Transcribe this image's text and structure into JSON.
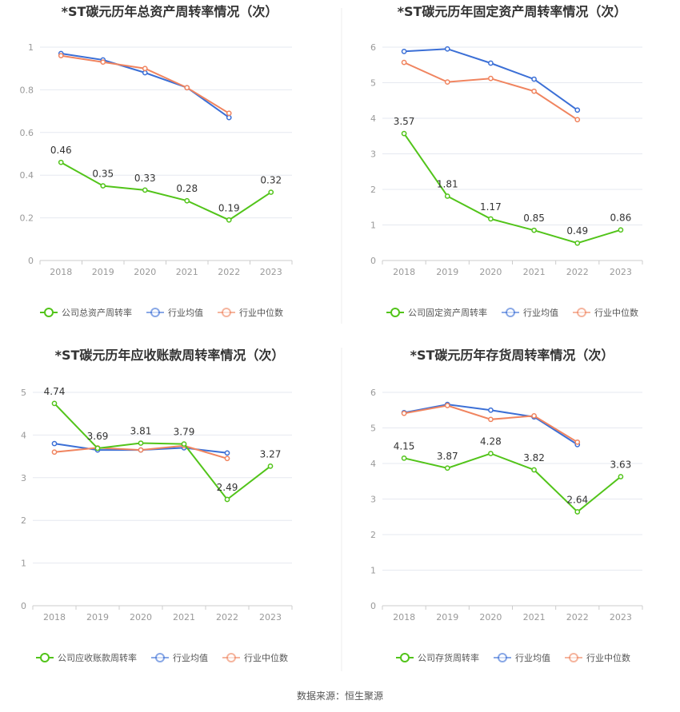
{
  "source_text": "数据来源：恒生聚源",
  "colors": {
    "company": "#52c41a",
    "avg": "#3b6fd6",
    "median": "#f0845f",
    "grid": "#e6e9f0",
    "axis": "#999999",
    "label": "#666666",
    "title": "#333333"
  },
  "chart_data": [
    {
      "type": "line",
      "title": "*ST碳元历年总资产周转率情况（次）",
      "categories": [
        "2018",
        "2019",
        "2020",
        "2021",
        "2022",
        "2023"
      ],
      "ylim": [
        0,
        1
      ],
      "yticks": [
        0,
        0.2,
        0.4,
        0.6,
        0.8,
        1
      ],
      "ytick_labels": [
        "0",
        "0.2",
        "0.4",
        "0.6",
        "0.8",
        "1"
      ],
      "grid": true,
      "legend_position": "bottom",
      "series": [
        {
          "name": "公司总资产周转率",
          "color": "#52c41a",
          "values": [
            0.46,
            0.35,
            0.33,
            0.28,
            0.19,
            0.32
          ],
          "labels": [
            "0.46",
            "0.35",
            "0.33",
            "0.28",
            "0.19",
            "0.32"
          ]
        },
        {
          "name": "行业均值",
          "color": "#3b6fd6",
          "values": [
            0.97,
            0.94,
            0.88,
            0.81,
            0.67,
            null
          ]
        },
        {
          "name": "行业中位数",
          "color": "#f0845f",
          "values": [
            0.96,
            0.93,
            0.9,
            0.81,
            0.69,
            null
          ]
        }
      ]
    },
    {
      "type": "line",
      "title": "*ST碳元历年固定资产周转率情况（次）",
      "categories": [
        "2018",
        "2019",
        "2020",
        "2021",
        "2022",
        "2023"
      ],
      "ylim": [
        0,
        6
      ],
      "yticks": [
        0,
        1,
        2,
        3,
        4,
        5,
        6
      ],
      "ytick_labels": [
        "0",
        "1",
        "2",
        "3",
        "4",
        "5",
        "6"
      ],
      "grid": true,
      "legend_position": "bottom",
      "series": [
        {
          "name": "公司固定资产周转率",
          "color": "#52c41a",
          "values": [
            3.57,
            1.81,
            1.17,
            0.85,
            0.49,
            0.86
          ],
          "labels": [
            "3.57",
            "1.81",
            "1.17",
            "0.85",
            "0.49",
            "0.86"
          ]
        },
        {
          "name": "行业均值",
          "color": "#3b6fd6",
          "values": [
            5.88,
            5.95,
            5.55,
            5.1,
            4.23,
            null
          ]
        },
        {
          "name": "行业中位数",
          "color": "#f0845f",
          "values": [
            5.57,
            5.02,
            5.12,
            4.76,
            3.96,
            null
          ]
        }
      ]
    },
    {
      "type": "line",
      "title": "*ST碳元历年应收账款周转率情况（次）",
      "categories": [
        "2018",
        "2019",
        "2020",
        "2021",
        "2022",
        "2023"
      ],
      "ylim": [
        0,
        5
      ],
      "yticks": [
        0,
        1,
        2,
        3,
        4,
        5
      ],
      "ytick_labels": [
        "0",
        "1",
        "2",
        "3",
        "4",
        "5"
      ],
      "grid": true,
      "legend_position": "bottom",
      "series": [
        {
          "name": "公司应收账款周转率",
          "color": "#52c41a",
          "values": [
            4.74,
            3.69,
            3.81,
            3.79,
            2.49,
            3.27
          ],
          "labels": [
            "4.74",
            "3.69",
            "3.81",
            "3.79",
            "2.49",
            "3.27"
          ]
        },
        {
          "name": "行业均值",
          "color": "#3b6fd6",
          "values": [
            3.8,
            3.65,
            3.65,
            3.7,
            3.58,
            null
          ]
        },
        {
          "name": "行业中位数",
          "color": "#f0845f",
          "values": [
            3.6,
            3.7,
            3.65,
            3.75,
            3.45,
            null
          ]
        }
      ]
    },
    {
      "type": "line",
      "title": "*ST碳元历年存货周转率情况（次）",
      "categories": [
        "2018",
        "2019",
        "2020",
        "2021",
        "2022",
        "2023"
      ],
      "ylim": [
        0,
        6
      ],
      "yticks": [
        0,
        1,
        2,
        3,
        4,
        5,
        6
      ],
      "ytick_labels": [
        "0",
        "1",
        "2",
        "3",
        "4",
        "5",
        "6"
      ],
      "grid": true,
      "legend_position": "bottom",
      "series": [
        {
          "name": "公司存货周转率",
          "color": "#52c41a",
          "values": [
            4.15,
            3.87,
            4.28,
            3.82,
            2.64,
            3.63
          ],
          "labels": [
            "4.15",
            "3.87",
            "4.28",
            "3.82",
            "2.64",
            "3.63"
          ]
        },
        {
          "name": "行业均值",
          "color": "#3b6fd6",
          "values": [
            5.43,
            5.66,
            5.5,
            5.31,
            4.53,
            null
          ]
        },
        {
          "name": "行业中位数",
          "color": "#f0845f",
          "values": [
            5.41,
            5.63,
            5.24,
            5.34,
            4.6,
            null
          ]
        }
      ]
    }
  ]
}
